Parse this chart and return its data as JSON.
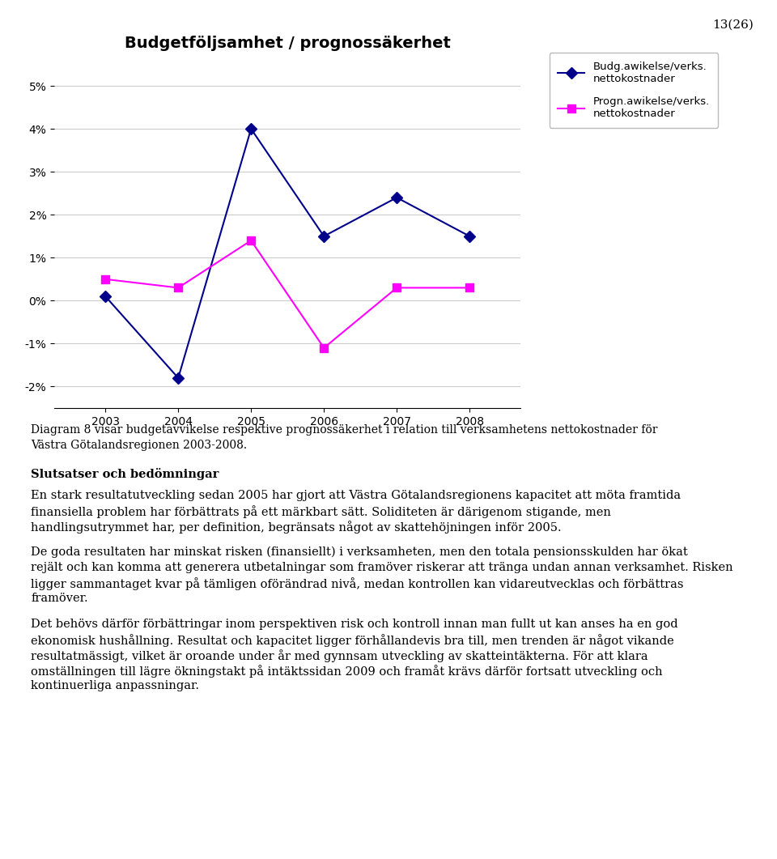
{
  "title": "Budgetföljsamhet / prognossäkerhet",
  "page_number": "13(26)",
  "years": [
    2003,
    2004,
    2005,
    2006,
    2007,
    2008
  ],
  "series1_name": "Budg.awikelse/verks.\nnettokostnader",
  "series1_values": [
    0.001,
    -0.018,
    0.04,
    0.015,
    0.024,
    0.015
  ],
  "series1_color": "#00008B",
  "series2_name": "Progn.awikelse/verks.\nnettokostnader",
  "series2_values": [
    0.005,
    0.003,
    0.014,
    -0.011,
    0.003,
    0.003
  ],
  "series2_color": "#FF00FF",
  "ylim": [
    -0.025,
    0.055
  ],
  "yticks": [
    -0.02,
    -0.01,
    0.0,
    0.01,
    0.02,
    0.03,
    0.04,
    0.05
  ],
  "ytick_labels": [
    "-2%",
    "-1%",
    "0%",
    "1%",
    "2%",
    "3%",
    "4%",
    "5%"
  ],
  "caption_line1": "Diagram 8 visar budgetavvikelse respektive prognossäkerhet i relation till verksamhetens nettokostnader för",
  "caption_line2": "Västra Götalandsregionen 2003-2008.",
  "section_title": "Slutsatser och bedömningar",
  "paragraph1": "En stark resultatutveckling sedan 2005 har gjort att Västra Götalandsregionens kapacitet att möta framtida finansiella problem har förbättrats på ett märkbart sätt. Soliditeten är därigenom stigande, men handlingsutrymmet har, per definition, begränsats något av skattehöjningen inför 2005.",
  "paragraph2": "De goda resultaten har minskat risken (finansiellt) i verksamheten, men den totala pensionsskulden har ökat rejält och kan komma att generera utbetalningar som framöver riskerar att tränga undan annan verksamhet. Risken ligger sammantaget kvar på tämligen oförändrad nivå, medan kontrollen kan vidareutvecklas och förbättras framöver.",
  "paragraph3": "Det behövs därför förbättringar inom perspektiven risk och kontroll innan man fullt ut kan anses ha en god ekonomisk hushållning. Resultat och kapacitet ligger förhållandevis bra till, men trenden är något vikande resultatmässigt, vilket är oroande under år med gynnsam utveckling av skatteintäkterna. För att klara omställningen till lägre ökningstakt på intäktssidan 2009 och framåt krävs därför fortsatt utveckling och kontinuerliga anpassningar.",
  "bg_color": "#FFFFFF",
  "grid_color": "#CCCCCC",
  "chart_bg": "#FFFFFF"
}
